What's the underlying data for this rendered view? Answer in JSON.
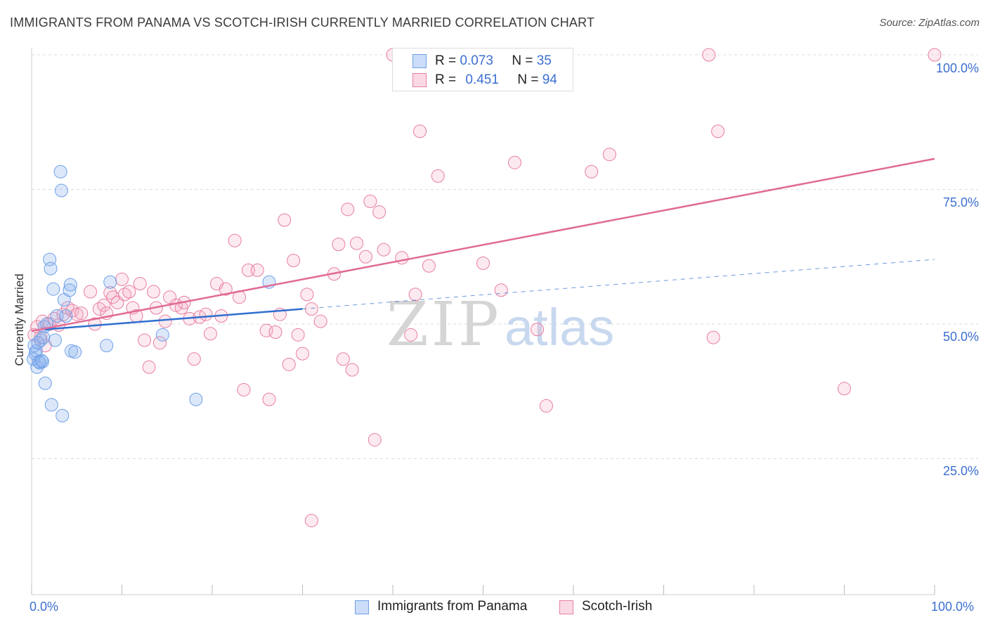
{
  "header": {
    "title": "IMMIGRANTS FROM PANAMA VS SCOTCH-IRISH CURRENTLY MARRIED CORRELATION CHART",
    "source": "Source: ZipAtlas.com"
  },
  "legend_top": {
    "row1": {
      "r_label": "R =",
      "r_value": "0.073",
      "n_label": "N =",
      "n_value": "35"
    },
    "row2": {
      "r_label": "R =",
      "r_value": "0.451",
      "n_label": "N =",
      "n_value": "94"
    }
  },
  "legend_bottom": {
    "series1": "Immigrants from Panama",
    "series2": "Scotch-Irish"
  },
  "axes": {
    "ylabel": "Currently Married",
    "y_ticks": [
      "100.0%",
      "75.0%",
      "50.0%",
      "25.0%"
    ],
    "x_left": "0.0%",
    "x_right": "100.0%"
  },
  "watermark": {
    "zip": "ZIP",
    "atlas": "atlas"
  },
  "colors": {
    "blue": "#6fa0e8",
    "blue_fill": "rgba(140,180,240,0.30)",
    "blue_line": "#2f6fcf",
    "pink": "#e87ea0",
    "pink_fill": "rgba(245,170,195,0.25)",
    "pink_line": "#e06a95",
    "tick_label": "#3c6fd1"
  },
  "chart_data": {
    "type": "scatter",
    "title": "IMMIGRANTS FROM PANAMA VS SCOTCH-IRISH CURRENTLY MARRIED CORRELATION CHART",
    "xlabel": "",
    "ylabel": "Currently Married",
    "xlim": [
      0,
      100
    ],
    "ylim": [
      0,
      100
    ],
    "y_ticks": [
      25,
      50,
      75,
      100
    ],
    "series": [
      {
        "name": "Immigrants from Panama",
        "r": 0.073,
        "n": 35,
        "trend": {
          "x0": 1.5,
          "y0": 49.0,
          "x1": 30.0,
          "y1": 52.8,
          "dash_to_x": 100,
          "dash_to_y": 62.0
        },
        "points": [
          [
            0.3,
            46
          ],
          [
            0.4,
            44.5
          ],
          [
            0.5,
            45
          ],
          [
            0.6,
            42
          ],
          [
            0.8,
            43
          ],
          [
            0.9,
            42.8
          ],
          [
            1.0,
            47
          ],
          [
            1.2,
            43
          ],
          [
            1.3,
            47.5
          ],
          [
            1.4,
            49.5
          ],
          [
            1.5,
            39
          ],
          [
            1.7,
            50
          ],
          [
            2.0,
            62
          ],
          [
            2.1,
            60.3
          ],
          [
            2.2,
            35
          ],
          [
            2.4,
            56.5
          ],
          [
            2.6,
            47
          ],
          [
            2.8,
            51.5
          ],
          [
            3.2,
            78.3
          ],
          [
            3.3,
            74.8
          ],
          [
            3.4,
            33
          ],
          [
            3.6,
            54.5
          ],
          [
            3.8,
            51.5
          ],
          [
            4.2,
            56.3
          ],
          [
            4.3,
            57.3
          ],
          [
            4.4,
            45
          ],
          [
            4.8,
            44.8
          ],
          [
            8.3,
            46
          ],
          [
            8.7,
            57.8
          ],
          [
            14.5,
            48
          ],
          [
            18.2,
            36
          ],
          [
            26.3,
            57.8
          ],
          [
            0.2,
            43.5
          ],
          [
            0.7,
            46.5
          ],
          [
            1.1,
            43.2
          ]
        ]
      },
      {
        "name": "Scotch-Irish",
        "r": 0.451,
        "n": 94,
        "trend": {
          "x0": 0,
          "y0": 48.7,
          "x1": 100,
          "y1": 80.7
        },
        "points": [
          [
            0.3,
            48
          ],
          [
            0.6,
            49.5
          ],
          [
            1.0,
            47.5
          ],
          [
            1.2,
            50.5
          ],
          [
            1.5,
            46
          ],
          [
            2.0,
            50
          ],
          [
            2.5,
            51
          ],
          [
            3.0,
            49.8
          ],
          [
            3.5,
            51.8
          ],
          [
            4.0,
            53
          ],
          [
            4.5,
            52.5
          ],
          [
            5.0,
            51.8
          ],
          [
            5.5,
            52
          ],
          [
            6.5,
            56
          ],
          [
            7.0,
            50
          ],
          [
            7.5,
            52.8
          ],
          [
            8.0,
            53.5
          ],
          [
            8.3,
            52
          ],
          [
            8.7,
            55.8
          ],
          [
            9.0,
            55
          ],
          [
            9.5,
            54
          ],
          [
            10.0,
            58.3
          ],
          [
            10.3,
            55.5
          ],
          [
            10.8,
            56
          ],
          [
            11.2,
            53
          ],
          [
            11.6,
            51.5
          ],
          [
            12.0,
            57.5
          ],
          [
            12.5,
            47
          ],
          [
            13.0,
            42
          ],
          [
            13.5,
            56
          ],
          [
            13.8,
            53
          ],
          [
            14.2,
            46.5
          ],
          [
            14.8,
            50.5
          ],
          [
            15.3,
            55
          ],
          [
            16.0,
            53.5
          ],
          [
            16.6,
            53
          ],
          [
            16.9,
            54
          ],
          [
            17.5,
            51
          ],
          [
            18.0,
            43.5
          ],
          [
            18.6,
            51.3
          ],
          [
            19.3,
            51.8
          ],
          [
            19.8,
            48.2
          ],
          [
            20.5,
            57.5
          ],
          [
            21.0,
            51.5
          ],
          [
            21.5,
            56.5
          ],
          [
            22.5,
            65.5
          ],
          [
            23.0,
            55
          ],
          [
            23.5,
            37.8
          ],
          [
            24.0,
            60
          ],
          [
            25.0,
            60
          ],
          [
            26.0,
            48.8
          ],
          [
            26.3,
            36
          ],
          [
            27.0,
            48.5
          ],
          [
            27.5,
            51.8
          ],
          [
            28.0,
            69.3
          ],
          [
            28.5,
            42.5
          ],
          [
            29.0,
            61.8
          ],
          [
            29.5,
            48
          ],
          [
            30.0,
            44.5
          ],
          [
            30.5,
            55.5
          ],
          [
            31.0,
            52.8
          ],
          [
            32.0,
            50.5
          ],
          [
            33.5,
            59.3
          ],
          [
            34.0,
            64.8
          ],
          [
            34.5,
            43.5
          ],
          [
            35.0,
            71.3
          ],
          [
            35.5,
            41.5
          ],
          [
            36.0,
            65
          ],
          [
            37.0,
            62.5
          ],
          [
            37.5,
            72.8
          ],
          [
            38.0,
            28.5
          ],
          [
            38.5,
            70.8
          ],
          [
            39.0,
            63.8
          ],
          [
            40.0,
            100
          ],
          [
            41.0,
            62.3
          ],
          [
            42.0,
            48
          ],
          [
            42.5,
            55.5
          ],
          [
            43.0,
            85.8
          ],
          [
            44.0,
            60.8
          ],
          [
            45.0,
            77.5
          ],
          [
            47.0,
            100
          ],
          [
            50.0,
            61.3
          ],
          [
            52.0,
            56.3
          ],
          [
            53.5,
            80
          ],
          [
            56.0,
            49
          ],
          [
            57.0,
            34.8
          ],
          [
            62.0,
            78.3
          ],
          [
            64.0,
            81.5
          ],
          [
            75.0,
            100
          ],
          [
            75.5,
            47.5
          ],
          [
            76.0,
            85.8
          ],
          [
            90.0,
            38
          ],
          [
            100,
            100
          ],
          [
            31.0,
            13.5
          ]
        ]
      }
    ]
  }
}
